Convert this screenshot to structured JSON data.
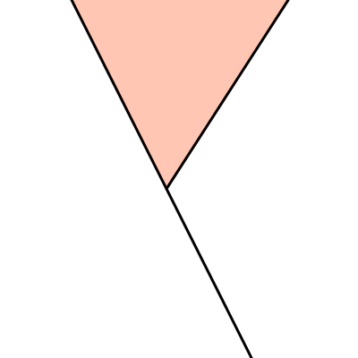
{
  "diagram": {
    "elements": [
      {
        "name": "filled-triangle-region",
        "kind": "polygon",
        "fill": "#FFC6B3",
        "stroke": "none"
      },
      {
        "name": "left-diagonal-line",
        "kind": "line",
        "stroke": "#000000"
      },
      {
        "name": "right-diagonal-line",
        "kind": "line",
        "stroke": "#000000"
      }
    ]
  }
}
